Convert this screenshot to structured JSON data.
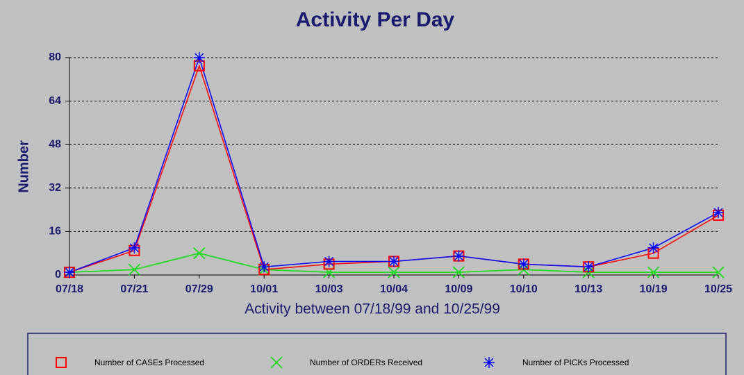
{
  "chart_data": {
    "type": "line",
    "title": "Activity Per Day",
    "xlabel": "Activity between 07/18/99 and 10/25/99",
    "ylabel": "Number",
    "categories": [
      "07/18",
      "07/21",
      "07/29",
      "10/01",
      "10/03",
      "10/04",
      "10/09",
      "10/10",
      "10/13",
      "10/19",
      "10/25"
    ],
    "series": [
      {
        "name": "Number of CASEs Processed",
        "color": "#ff0000",
        "marker": "square",
        "values": [
          1,
          9,
          77,
          2,
          4,
          5,
          7,
          4,
          3,
          8,
          22
        ]
      },
      {
        "name": "Number of ORDERs Received",
        "color": "#00e000",
        "marker": "x",
        "values": [
          1,
          2,
          8,
          2,
          1,
          1,
          1,
          2,
          1,
          1,
          1
        ]
      },
      {
        "name": "Number of PICKs Processed",
        "color": "#0000ff",
        "marker": "star",
        "values": [
          1,
          10,
          80,
          3,
          5,
          5,
          7,
          4,
          3,
          10,
          23
        ]
      }
    ],
    "ylim": [
      0,
      80
    ],
    "yticks": [
      0,
      16,
      32,
      48,
      64,
      80
    ],
    "grid": true
  }
}
